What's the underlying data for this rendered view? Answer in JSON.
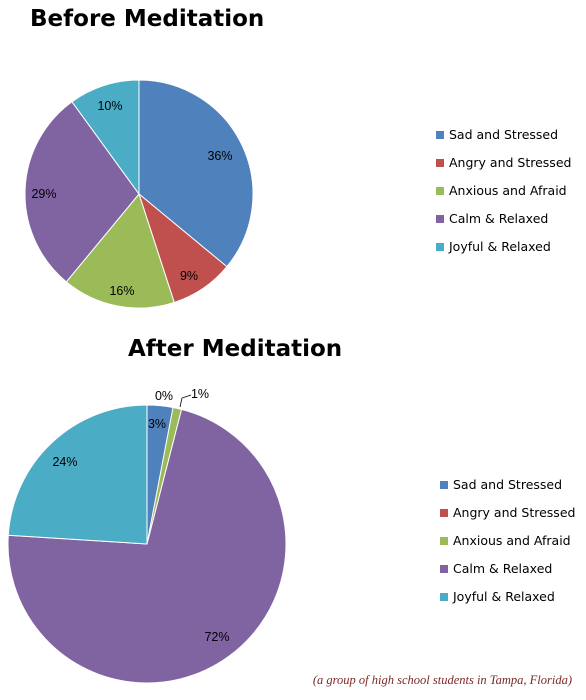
{
  "caption": "(a group of high school students in Tampa, Florida)",
  "chart_data": [
    {
      "type": "pie",
      "title": "Before Meditation",
      "categories": [
        "Sad and Stressed",
        "Angry and Stressed",
        "Anxious and Afraid",
        "Calm & Relaxed",
        "Joyful & Relaxed"
      ],
      "values": [
        36,
        9,
        16,
        29,
        10
      ],
      "labels": [
        "36%",
        "9%",
        "16%",
        "29%",
        "10%"
      ],
      "colors": [
        "#4f81bd",
        "#c0504d",
        "#9bbb59",
        "#8064a2",
        "#4bacc6"
      ],
      "legend": "right"
    },
    {
      "type": "pie",
      "title": "After Meditation",
      "categories": [
        "Sad and Stressed",
        "Angry and Stressed",
        "Anxious and Afraid",
        "Calm & Relaxed",
        "Joyful & Relaxed"
      ],
      "values": [
        3,
        0,
        1,
        72,
        24
      ],
      "labels": [
        "3%",
        "0%",
        "1%",
        "72%",
        "24%"
      ],
      "colors": [
        "#4f81bd",
        "#c0504d",
        "#9bbb59",
        "#8064a2",
        "#4bacc6"
      ],
      "legend": "right"
    }
  ]
}
